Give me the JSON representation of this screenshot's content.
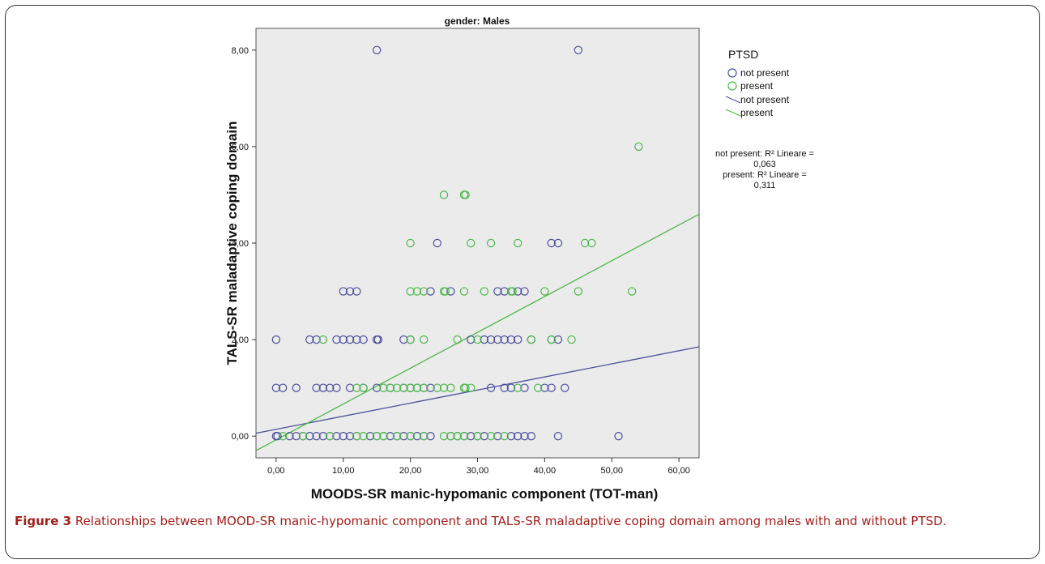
{
  "chart_data": {
    "type": "scatter",
    "title": "gender: Males",
    "xlabel": "MOODS-SR manic-hypomanic component (TOT-man)",
    "ylabel": "TALS-SR maladaptive coping domain",
    "xlim": [
      -3,
      63
    ],
    "ylim": [
      -0.45,
      8.45
    ],
    "x_ticks": [
      0,
      10,
      20,
      30,
      40,
      50,
      60
    ],
    "x_tick_labels": [
      "0,00",
      "10,00",
      "20,00",
      "30,00",
      "40,00",
      "50,00",
      "60,00"
    ],
    "y_ticks": [
      0,
      2,
      4,
      6,
      8
    ],
    "y_tick_labels": [
      "0,00",
      "2,00",
      "4,00",
      "6,00",
      "8,00"
    ],
    "legend_title": "PTSD",
    "legend_position": "right",
    "colors": {
      "not_present": "#4a4f9a",
      "present": "#4db84a",
      "plot_bg": "#ebebeb"
    },
    "series": [
      {
        "name": "not present",
        "marker_color": "#4a4f9a",
        "points": [
          [
            15,
            8
          ],
          [
            45,
            8
          ],
          [
            24,
            4
          ],
          [
            42,
            4
          ],
          [
            41,
            4
          ],
          [
            11,
            3
          ],
          [
            10,
            3
          ],
          [
            12,
            3
          ],
          [
            23,
            3
          ],
          [
            33,
            3
          ],
          [
            36,
            3
          ],
          [
            37,
            3
          ],
          [
            26,
            3
          ],
          [
            34,
            3
          ],
          [
            0,
            2
          ],
          [
            5,
            2
          ],
          [
            6,
            2
          ],
          [
            9,
            2
          ],
          [
            10,
            2
          ],
          [
            11,
            2
          ],
          [
            12,
            2
          ],
          [
            13,
            2
          ],
          [
            15,
            2
          ],
          [
            15.2,
            2
          ],
          [
            19,
            2
          ],
          [
            20,
            2
          ],
          [
            29,
            2
          ],
          [
            31,
            2
          ],
          [
            32,
            2
          ],
          [
            33,
            2
          ],
          [
            34,
            2
          ],
          [
            35,
            2
          ],
          [
            36,
            2
          ],
          [
            38,
            2
          ],
          [
            42,
            2
          ],
          [
            41,
            2
          ],
          [
            0,
            1
          ],
          [
            1,
            1
          ],
          [
            3,
            1
          ],
          [
            6,
            1
          ],
          [
            7,
            1
          ],
          [
            8,
            1
          ],
          [
            9,
            1
          ],
          [
            11,
            1
          ],
          [
            13,
            1
          ],
          [
            15,
            1
          ],
          [
            17,
            1
          ],
          [
            19,
            1
          ],
          [
            20,
            1
          ],
          [
            21,
            1
          ],
          [
            22,
            1
          ],
          [
            23,
            1
          ],
          [
            32,
            1
          ],
          [
            34,
            1
          ],
          [
            35,
            1
          ],
          [
            37,
            1
          ],
          [
            40,
            1
          ],
          [
            41,
            1
          ],
          [
            43,
            1
          ],
          [
            0,
            0
          ],
          [
            0.2,
            0
          ],
          [
            2,
            0
          ],
          [
            3,
            0
          ],
          [
            4,
            0
          ],
          [
            5,
            0
          ],
          [
            6,
            0
          ],
          [
            7,
            0
          ],
          [
            8,
            0
          ],
          [
            9,
            0
          ],
          [
            10,
            0
          ],
          [
            11,
            0
          ],
          [
            12,
            0
          ],
          [
            14,
            0
          ],
          [
            15,
            0
          ],
          [
            16,
            0
          ],
          [
            17,
            0
          ],
          [
            18,
            0
          ],
          [
            19,
            0
          ],
          [
            20,
            0
          ],
          [
            21,
            0
          ],
          [
            22,
            0
          ],
          [
            23,
            0
          ],
          [
            26,
            0
          ],
          [
            27,
            0
          ],
          [
            28,
            0
          ],
          [
            29,
            0
          ],
          [
            30,
            0
          ],
          [
            31,
            0
          ],
          [
            33,
            0
          ],
          [
            35,
            0
          ],
          [
            36,
            0
          ],
          [
            37,
            0
          ],
          [
            38,
            0
          ],
          [
            42,
            0
          ],
          [
            51,
            0
          ]
        ]
      },
      {
        "name": "present",
        "marker_color": "#4db84a",
        "points": [
          [
            54,
            6
          ],
          [
            25,
            5
          ],
          [
            28,
            5
          ],
          [
            28.2,
            5
          ],
          [
            20,
            4
          ],
          [
            29,
            4
          ],
          [
            32,
            4
          ],
          [
            36,
            4
          ],
          [
            46,
            4
          ],
          [
            47,
            4
          ],
          [
            20,
            3
          ],
          [
            21,
            3
          ],
          [
            22,
            3
          ],
          [
            25,
            3
          ],
          [
            25.2,
            3
          ],
          [
            28,
            3
          ],
          [
            31,
            3
          ],
          [
            35,
            3
          ],
          [
            35.2,
            3
          ],
          [
            40,
            3
          ],
          [
            45,
            3
          ],
          [
            53,
            3
          ],
          [
            7,
            2
          ],
          [
            20,
            2
          ],
          [
            22,
            2
          ],
          [
            27,
            2
          ],
          [
            30,
            2
          ],
          [
            38,
            2
          ],
          [
            41,
            2
          ],
          [
            44,
            2
          ],
          [
            12,
            1
          ],
          [
            13,
            1
          ],
          [
            16,
            1
          ],
          [
            17,
            1
          ],
          [
            18,
            1
          ],
          [
            19,
            1
          ],
          [
            20,
            1
          ],
          [
            21,
            1
          ],
          [
            22,
            1
          ],
          [
            24,
            1
          ],
          [
            25,
            1
          ],
          [
            26,
            1
          ],
          [
            28,
            1
          ],
          [
            28.2,
            1
          ],
          [
            29,
            1
          ],
          [
            36,
            1
          ],
          [
            39,
            1
          ],
          [
            1,
            0
          ],
          [
            4,
            0
          ],
          [
            8,
            0
          ],
          [
            12,
            0
          ],
          [
            13,
            0
          ],
          [
            15,
            0
          ],
          [
            16,
            0
          ],
          [
            18,
            0
          ],
          [
            20,
            0
          ],
          [
            22,
            0
          ],
          [
            25,
            0
          ],
          [
            26,
            0
          ],
          [
            27,
            0
          ],
          [
            28,
            0
          ],
          [
            30,
            0
          ],
          [
            32,
            0
          ],
          [
            34,
            0
          ]
        ]
      }
    ],
    "fit_lines": [
      {
        "name": "not present",
        "color": "#4a4f9a",
        "from": [
          -3,
          0.06
        ],
        "to": [
          63,
          1.85
        ],
        "r2_label": "not present: R² Lineare =",
        "r2_value": "0,063"
      },
      {
        "name": "present",
        "color": "#4db84a",
        "from": [
          -3,
          -0.3
        ],
        "to": [
          63,
          4.6
        ],
        "r2_label": "present: R² Lineare =",
        "r2_value": "0,311"
      }
    ]
  },
  "caption": {
    "label": "Figure 3",
    "text": " Relationships between MOOD-SR manic-hypomanic component and TALS-SR maladaptive coping domain among males with and without PTSD."
  }
}
